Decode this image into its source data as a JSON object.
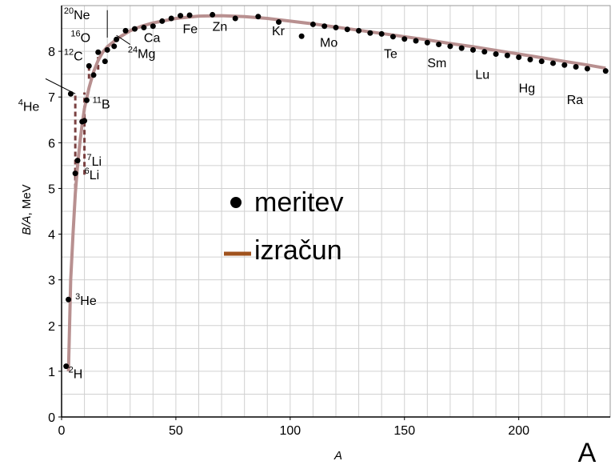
{
  "chart_data": {
    "type": "scatter",
    "xlabel": "A",
    "ylabel_italic": "B/A",
    "ylabel_rest": ", MeV",
    "corner_label": "A",
    "xlim": [
      0,
      240
    ],
    "ylim": [
      0,
      9
    ],
    "grid": true,
    "x_ticks": [
      0,
      50,
      100,
      150,
      200
    ],
    "y_ticks": [
      0,
      1,
      2,
      3,
      4,
      5,
      6,
      7,
      8
    ],
    "colors": {
      "points": "#000000",
      "curve": "#b89090",
      "dashed": "#7a4040",
      "legend_line": "#a0521d",
      "grid": "#d0d0d0"
    },
    "legend": {
      "placement": "center",
      "items": [
        {
          "label": "meritev",
          "kind": "point"
        },
        {
          "label": "izračun",
          "kind": "line"
        }
      ]
    },
    "series": [
      {
        "name": "meritev",
        "kind": "points",
        "x": [
          2,
          3,
          4,
          6,
          7,
          9,
          10,
          11,
          12,
          14,
          16,
          19,
          20,
          23,
          24,
          28,
          32,
          36,
          40,
          44,
          48,
          52,
          56,
          66,
          76,
          86,
          95,
          105,
          110,
          115,
          120,
          125,
          130,
          135,
          140,
          145,
          150,
          155,
          160,
          165,
          170,
          175,
          180,
          185,
          190,
          195,
          200,
          205,
          210,
          215,
          220,
          225,
          230,
          238
        ],
        "y": [
          1.11,
          2.57,
          7.07,
          5.33,
          5.61,
          6.46,
          6.48,
          6.93,
          7.68,
          7.48,
          7.98,
          7.78,
          8.03,
          8.11,
          8.26,
          8.45,
          8.49,
          8.52,
          8.55,
          8.66,
          8.72,
          8.78,
          8.79,
          8.8,
          8.72,
          8.76,
          8.64,
          8.33,
          8.59,
          8.55,
          8.52,
          8.48,
          8.45,
          8.4,
          8.38,
          8.32,
          8.27,
          8.23,
          8.19,
          8.15,
          8.11,
          8.07,
          8.03,
          7.99,
          7.94,
          7.91,
          7.87,
          7.82,
          7.78,
          7.74,
          7.7,
          7.66,
          7.62,
          7.57
        ]
      },
      {
        "name": "izračun",
        "kind": "curve",
        "x": [
          3,
          4,
          5,
          6,
          7,
          8,
          9,
          10,
          12,
          14,
          16,
          18,
          20,
          25,
          30,
          35,
          40,
          50,
          60,
          70,
          80,
          90,
          100,
          110,
          120,
          130,
          140,
          150,
          160,
          170,
          180,
          190,
          200,
          210,
          220,
          230,
          238
        ],
        "y": [
          1.0,
          3.0,
          4.0,
          4.9,
          5.5,
          6.0,
          6.4,
          6.75,
          7.2,
          7.55,
          7.8,
          7.98,
          8.1,
          8.3,
          8.45,
          8.55,
          8.62,
          8.72,
          8.77,
          8.78,
          8.76,
          8.72,
          8.66,
          8.6,
          8.53,
          8.46,
          8.39,
          8.32,
          8.25,
          8.17,
          8.1,
          8.02,
          7.94,
          7.86,
          7.78,
          7.7,
          7.63
        ]
      },
      {
        "kind": "dashed-links",
        "segments": [
          [
            [
              6,
              5.0
            ],
            [
              6,
              7.07
            ]
          ],
          [
            [
              10,
              5.3
            ],
            [
              10,
              7.1
            ]
          ],
          [
            [
              12,
              7.4
            ],
            [
              12,
              7.68
            ]
          ],
          [
            [
              16,
              7.6
            ],
            [
              16,
              7.98
            ]
          ]
        ]
      }
    ],
    "nuclide_labels": [
      {
        "mass": "2",
        "sym": "H",
        "x": 3,
        "y": 0.85
      },
      {
        "mass": "3",
        "sym": "He",
        "x": 6,
        "y": 2.45
      },
      {
        "mass": "4",
        "sym": "He",
        "x": -19,
        "y": 6.7
      },
      {
        "mass": "6",
        "sym": "Li",
        "x": 10,
        "y": 5.2
      },
      {
        "mass": "7",
        "sym": "Li",
        "x": 11,
        "y": 5.5
      },
      {
        "mass": "11",
        "sym": "B",
        "x": 13.5,
        "y": 6.75
      },
      {
        "mass": "12",
        "sym": "C",
        "x": 1,
        "y": 7.8
      },
      {
        "mass": "16",
        "sym": "O",
        "x": 4,
        "y": 8.2
      },
      {
        "mass": "20",
        "sym": "Ne",
        "x": 1,
        "y": 8.7
      },
      {
        "mass": "24",
        "sym": "Mg",
        "x": 29,
        "y": 7.85
      },
      {
        "mass": "",
        "sym": "Ca",
        "x": 36,
        "y": 8.2
      },
      {
        "mass": "",
        "sym": "Fe",
        "x": 53,
        "y": 8.4
      },
      {
        "mass": "",
        "sym": "Zn",
        "x": 66,
        "y": 8.45
      },
      {
        "mass": "",
        "sym": "Kr",
        "x": 92,
        "y": 8.35
      },
      {
        "mass": "",
        "sym": "Mo",
        "x": 113,
        "y": 8.1
      },
      {
        "mass": "",
        "sym": "Te",
        "x": 141,
        "y": 7.85
      },
      {
        "mass": "",
        "sym": "Sm",
        "x": 160,
        "y": 7.65
      },
      {
        "mass": "",
        "sym": "Lu",
        "x": 181,
        "y": 7.4
      },
      {
        "mass": "",
        "sym": "Hg",
        "x": 200,
        "y": 7.1
      },
      {
        "mass": "",
        "sym": "Ra",
        "x": 221,
        "y": 6.85
      }
    ]
  }
}
